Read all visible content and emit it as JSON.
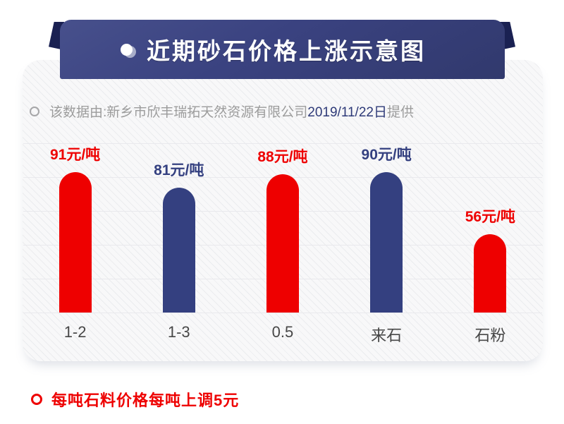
{
  "banner": {
    "title": "近期砂石价格上涨示意图"
  },
  "subtitle": {
    "prefix": "该数据由:新乡市欣丰瑞拓天然资源有限公司",
    "date": "2019/11/22日",
    "suffix": "提供"
  },
  "footer": {
    "note": "每吨石料价格每吨上调5元"
  },
  "colors": {
    "red": "#ee0000",
    "navy": "#344080",
    "banner_navy": "#3a4280",
    "banner_flap": "#1a2152",
    "date_navy": "#2e3a78",
    "subtitle_gray": "#9c9c9c",
    "gridline": "#e9e9ed"
  },
  "chart_data": {
    "type": "bar",
    "title": "近期砂石价格上涨示意图",
    "categories": [
      "1-2",
      "1-3",
      "0.5",
      "来石",
      "石粉"
    ],
    "values": [
      91,
      81,
      88,
      90,
      56
    ],
    "unit": "元/吨",
    "value_labels": [
      "91元/吨",
      "81元/吨",
      "88元/吨",
      "90元/吨",
      "56元/吨"
    ],
    "bar_colors": [
      "#ee0000",
      "#344080",
      "#ee0000",
      "#344080",
      "#ee0000"
    ],
    "xlabel": "",
    "ylabel": "",
    "ylim": [
      0,
      100
    ],
    "grid": true,
    "legend": false
  }
}
